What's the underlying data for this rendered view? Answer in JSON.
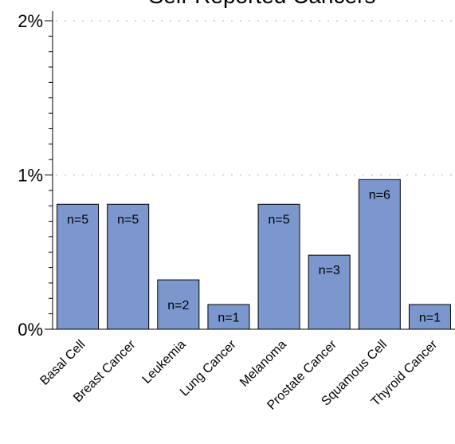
{
  "chart_data": {
    "type": "bar",
    "title": "Self-Reported Cancers",
    "xlabel": "",
    "ylabel": "",
    "categories": [
      "Basal Cell",
      "Breast Cancer",
      "Leukemia",
      "Lung Cancer",
      "Melanoma",
      "Prostate Cancer",
      "Squamous Cell",
      "Thyroid Cancer"
    ],
    "series": [
      {
        "values": [
          0.81,
          0.81,
          0.32,
          0.16,
          0.81,
          0.48,
          0.97,
          0.16
        ],
        "data_labels": [
          "n=5",
          "n=5",
          "n=2",
          "n=1",
          "n=5",
          "n=3",
          "n=6",
          "n=1"
        ]
      }
    ],
    "ylim": [
      0,
      2
    ],
    "yticks": [
      {
        "value": 0,
        "label": "0%"
      },
      {
        "value": 1,
        "label": "1%"
      },
      {
        "value": 2,
        "label": "2%"
      }
    ],
    "grid": "horizontal dotted at major ticks",
    "legend": "none",
    "bar_color": "#7b97ce",
    "bar_edge_color": "#000000"
  }
}
